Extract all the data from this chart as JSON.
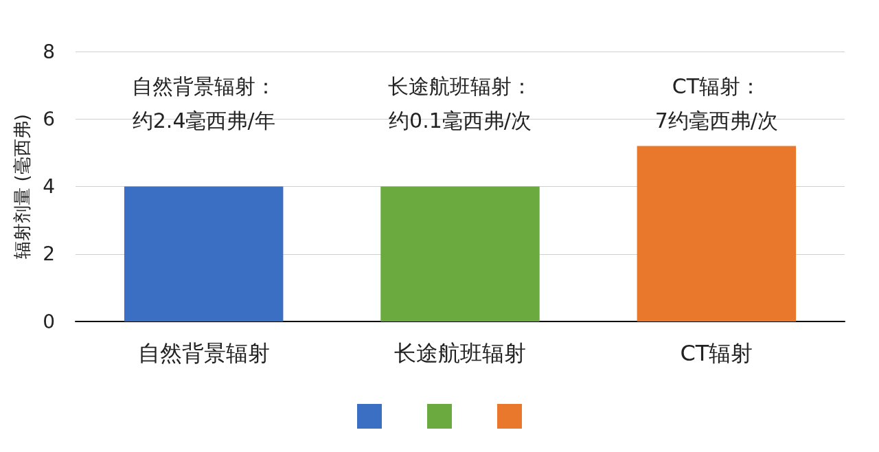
{
  "chart_data": {
    "type": "bar",
    "ylabel": "辐射剂量 (毫西弗)",
    "categories": [
      "自然背景辐射",
      "长途航班辐射",
      "CT辐射"
    ],
    "values": [
      4,
      4,
      5.2
    ],
    "colors": [
      "#3a6fc4",
      "#6aaa3e",
      "#e9782c"
    ],
    "ylim": [
      0,
      8
    ],
    "yticks": [
      0,
      2,
      4,
      6,
      8
    ],
    "grid": "y",
    "annotations": [
      "自然背景辐射：约2.4毫西弗/年",
      "长途航班辐射：约0.1毫西弗/次",
      "CT辐射：7约毫西弗/次"
    ]
  }
}
